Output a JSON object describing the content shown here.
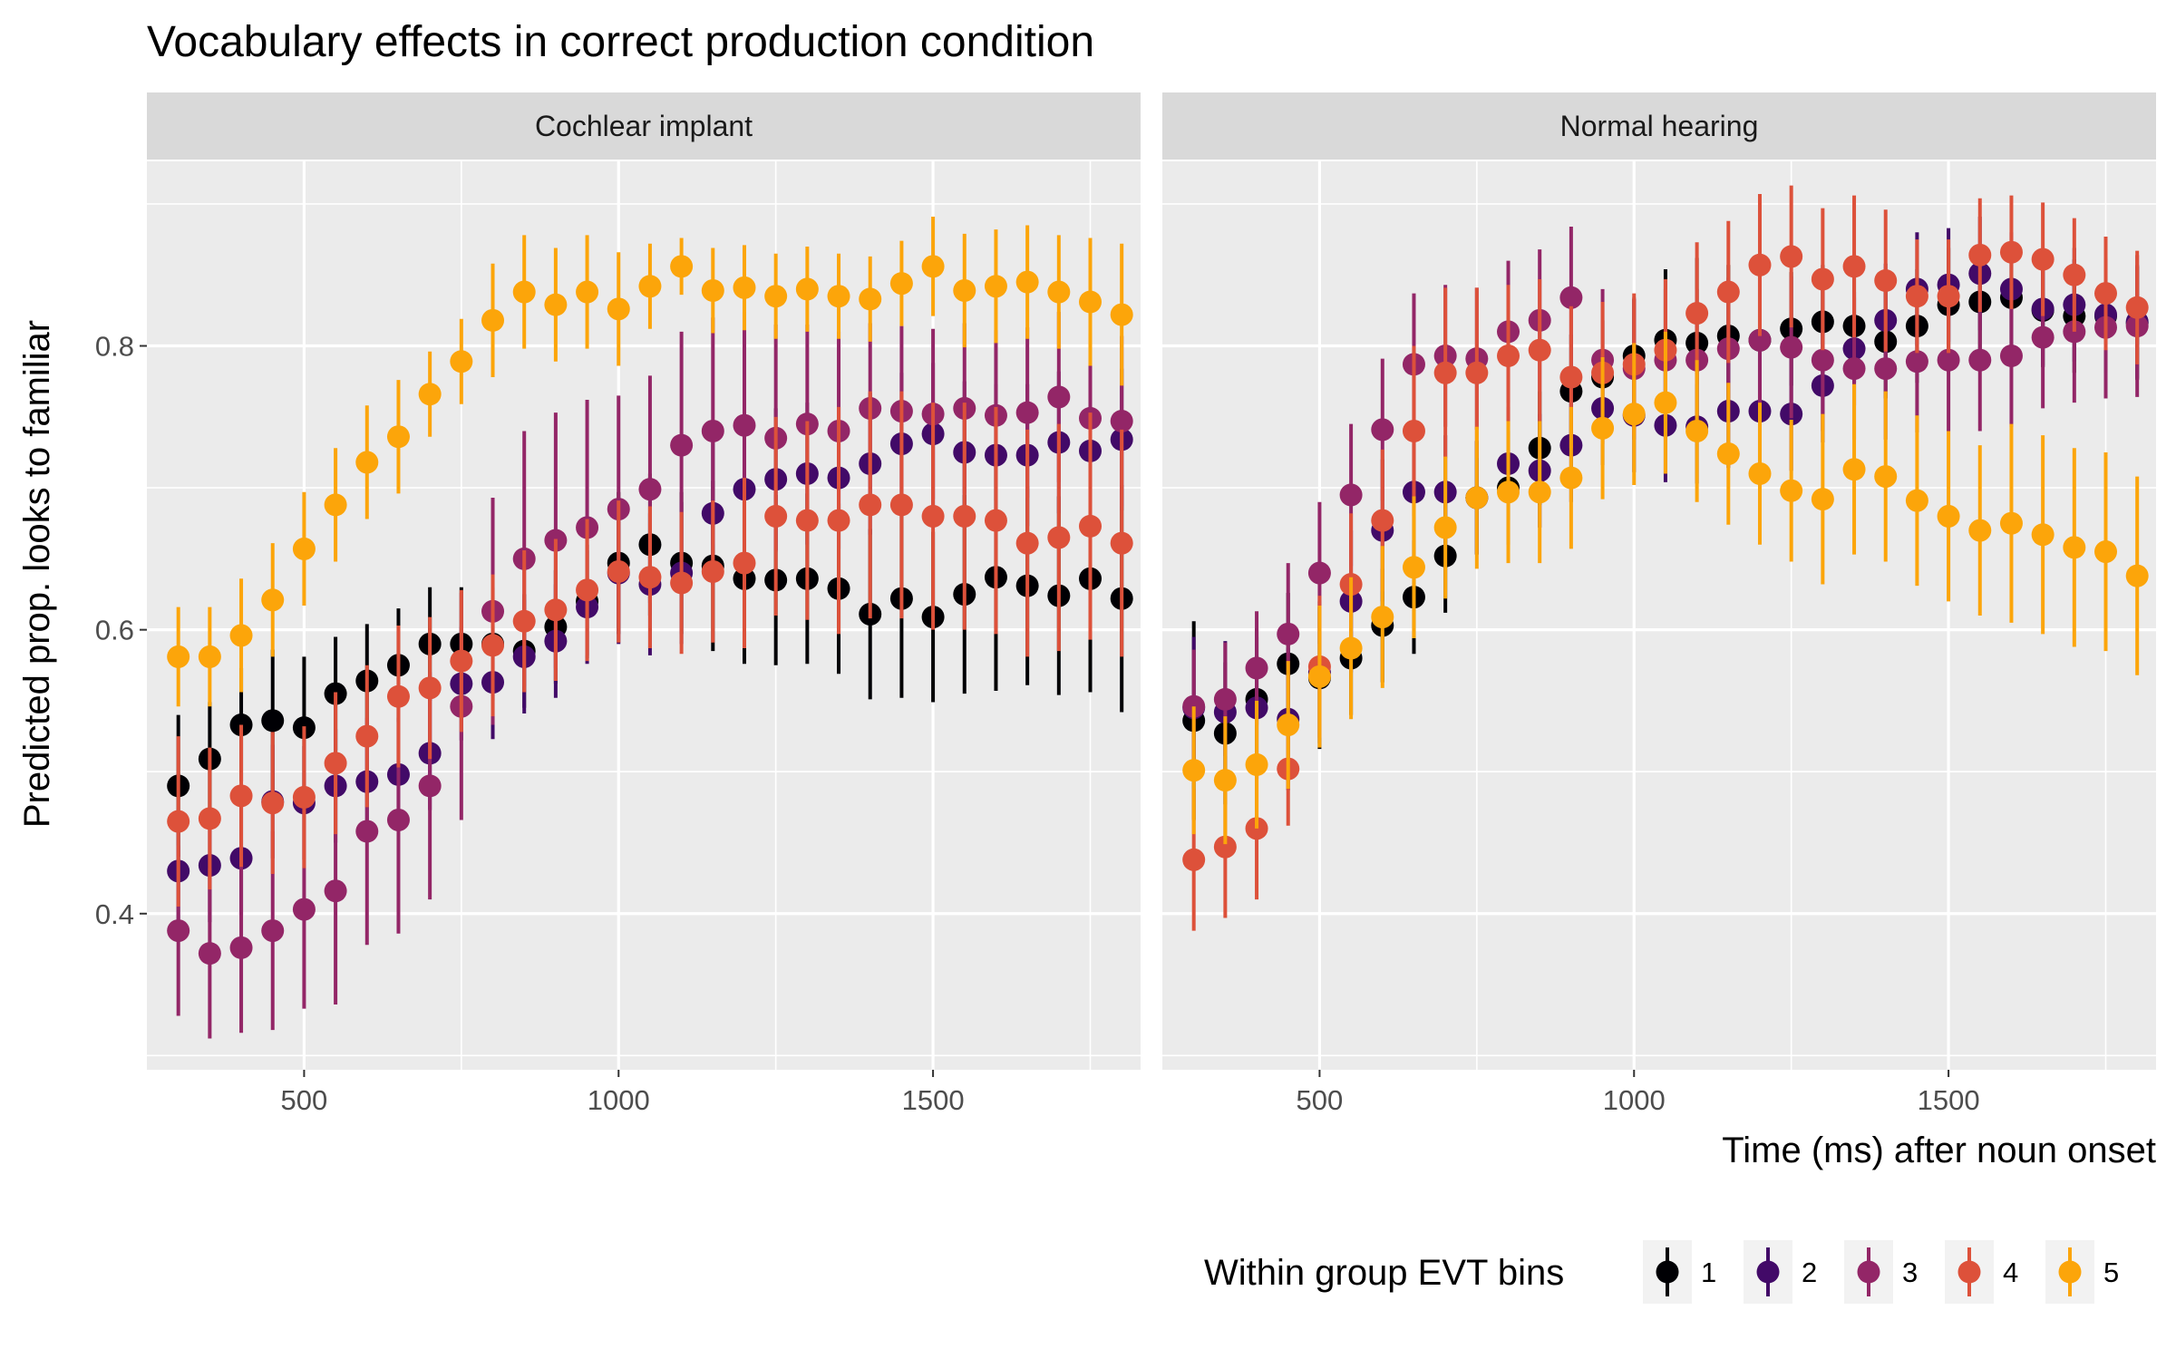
{
  "chart_data": {
    "type": "scatter",
    "subtype": "point-range (faceted)",
    "title": "Vocabulary effects in correct production condition",
    "xlabel": "Time (ms) after noun onset",
    "ylabel": "Predicted prop. looks to familiar",
    "xlim": [
      250,
      1830
    ],
    "ylim": [
      0.29,
      0.93
    ],
    "x_ticks": [
      500,
      1000,
      1500
    ],
    "y_ticks": [
      0.4,
      0.6,
      0.8
    ],
    "x_tick_labels": [
      "500",
      "1000",
      "1500"
    ],
    "y_tick_labels": [
      "0.4",
      "0.6",
      "0.8"
    ],
    "grid": true,
    "legend": {
      "title": "Within group EVT bins",
      "position": "bottom-right",
      "entries": [
        {
          "label": "1",
          "color": "#000004"
        },
        {
          "label": "2",
          "color": "#420A68"
        },
        {
          "label": "3",
          "color": "#932667"
        },
        {
          "label": "4",
          "color": "#DD513A"
        },
        {
          "label": "5",
          "color": "#FCA50A"
        }
      ]
    },
    "x": [
      300,
      350,
      400,
      450,
      500,
      550,
      600,
      650,
      700,
      750,
      800,
      850,
      900,
      950,
      1000,
      1050,
      1100,
      1150,
      1200,
      1250,
      1300,
      1350,
      1400,
      1450,
      1500,
      1550,
      1600,
      1650,
      1700,
      1750,
      1800
    ],
    "panels": [
      {
        "label": "Cochlear implant",
        "series": [
          {
            "name": "1",
            "color": "#000004",
            "y": [
              0.49,
              0.509,
              0.533,
              0.536,
              0.531,
              0.555,
              0.564,
              0.575,
              0.59,
              0.59,
              0.59,
              0.585,
              0.602,
              0.62,
              0.647,
              0.66,
              0.647,
              0.645,
              0.636,
              0.635,
              0.636,
              0.629,
              0.611,
              0.622,
              0.609,
              0.625,
              0.637,
              0.631,
              0.624,
              0.636,
              0.622
            ],
            "err": [
              0.05,
              0.04,
              0.04,
              0.05,
              0.05,
              0.04,
              0.04,
              0.04,
              0.04,
              0.04,
              0.04,
              0.04,
              0.04,
              0.04,
              0.05,
              0.05,
              0.05,
              0.06,
              0.06,
              0.06,
              0.06,
              0.06,
              0.06,
              0.07,
              0.06,
              0.07,
              0.08,
              0.07,
              0.07,
              0.08,
              0.08
            ]
          },
          {
            "name": "2",
            "color": "#420A68",
            "y": [
              0.43,
              0.434,
              0.439,
              0.479,
              0.478,
              0.49,
              0.493,
              0.498,
              0.513,
              0.562,
              0.563,
              0.581,
              0.592,
              0.616,
              0.64,
              0.632,
              0.64,
              0.682,
              0.699,
              0.706,
              0.71,
              0.707,
              0.717,
              0.731,
              0.738,
              0.725,
              0.723,
              0.723,
              0.732,
              0.726,
              0.734
            ],
            "err": [
              0.04,
              0.04,
              0.04,
              0.04,
              0.04,
              0.04,
              0.04,
              0.04,
              0.04,
              0.04,
              0.04,
              0.04,
              0.04,
              0.04,
              0.05,
              0.05,
              0.05,
              0.05,
              0.05,
              0.05,
              0.05,
              0.05,
              0.05,
              0.05,
              0.05,
              0.05,
              0.05,
              0.05,
              0.05,
              0.05,
              0.05
            ]
          },
          {
            "name": "3",
            "color": "#932667",
            "y": [
              0.388,
              0.372,
              0.376,
              0.388,
              0.403,
              0.416,
              0.458,
              0.466,
              0.49,
              0.546,
              0.613,
              0.65,
              0.663,
              0.672,
              0.685,
              0.699,
              0.73,
              0.74,
              0.744,
              0.735,
              0.745,
              0.74,
              0.756,
              0.754,
              0.752,
              0.756,
              0.751,
              0.753,
              0.764,
              0.749,
              0.747
            ],
            "err": [
              0.06,
              0.06,
              0.06,
              0.07,
              0.07,
              0.08,
              0.08,
              0.08,
              0.08,
              0.08,
              0.08,
              0.09,
              0.09,
              0.09,
              0.08,
              0.08,
              0.08,
              0.08,
              0.08,
              0.08,
              0.07,
              0.07,
              0.06,
              0.06,
              0.06,
              0.06,
              0.06,
              0.06,
              0.06,
              0.06,
              0.06
            ]
          },
          {
            "name": "4",
            "color": "#DD513A",
            "y": [
              0.465,
              0.467,
              0.483,
              0.478,
              0.482,
              0.506,
              0.525,
              0.553,
              0.559,
              0.578,
              0.589,
              0.606,
              0.614,
              0.628,
              0.641,
              0.637,
              0.633,
              0.641,
              0.647,
              0.68,
              0.677,
              0.677,
              0.688,
              0.688,
              0.68,
              0.68,
              0.677,
              0.661,
              0.665,
              0.673,
              0.661
            ],
            "err": [
              0.06,
              0.05,
              0.05,
              0.05,
              0.05,
              0.05,
              0.05,
              0.05,
              0.05,
              0.05,
              0.05,
              0.05,
              0.05,
              0.05,
              0.05,
              0.05,
              0.05,
              0.05,
              0.06,
              0.07,
              0.07,
              0.08,
              0.08,
              0.08,
              0.08,
              0.08,
              0.08,
              0.08,
              0.08,
              0.08,
              0.08
            ]
          },
          {
            "name": "5",
            "color": "#FCA50A",
            "y": [
              0.581,
              0.581,
              0.596,
              0.621,
              0.657,
              0.688,
              0.718,
              0.736,
              0.766,
              0.789,
              0.818,
              0.838,
              0.829,
              0.838,
              0.826,
              0.842,
              0.856,
              0.839,
              0.841,
              0.835,
              0.84,
              0.835,
              0.833,
              0.844,
              0.856,
              0.839,
              0.842,
              0.845,
              0.838,
              0.831,
              0.822
            ],
            "err": [
              0.035,
              0.035,
              0.04,
              0.04,
              0.04,
              0.04,
              0.04,
              0.04,
              0.03,
              0.03,
              0.04,
              0.04,
              0.04,
              0.04,
              0.04,
              0.03,
              0.02,
              0.03,
              0.03,
              0.03,
              0.03,
              0.03,
              0.03,
              0.03,
              0.035,
              0.04,
              0.04,
              0.04,
              0.04,
              0.045,
              0.05
            ]
          }
        ]
      },
      {
        "label": "Normal hearing",
        "series": [
          {
            "name": "1",
            "color": "#000004",
            "y": [
              0.536,
              0.527,
              0.551,
              0.576,
              0.566,
              0.58,
              0.603,
              0.623,
              0.652,
              0.693,
              0.7,
              0.728,
              0.768,
              0.778,
              0.793,
              0.804,
              0.802,
              0.807,
              0.804,
              0.812,
              0.817,
              0.814,
              0.803,
              0.814,
              0.829,
              0.831,
              0.834,
              0.825,
              0.821,
              0.821,
              0.816
            ],
            "err": [
              0.07,
              0.05,
              0.05,
              0.05,
              0.05,
              0.04,
              0.04,
              0.04,
              0.04,
              0.04,
              0.04,
              0.04,
              0.04,
              0.04,
              0.04,
              0.05,
              0.06,
              0.05,
              0.05,
              0.04,
              0.04,
              0.04,
              0.04,
              0.04,
              0.04,
              0.04,
              0.04,
              0.04,
              0.04,
              0.04,
              0.04
            ]
          },
          {
            "name": "2",
            "color": "#420A68",
            "y": [
              0.545,
              0.542,
              0.545,
              0.537,
              0.57,
              0.62,
              0.67,
              0.697,
              0.697,
              0.693,
              0.717,
              0.712,
              0.73,
              0.756,
              0.751,
              0.744,
              0.743,
              0.754,
              0.754,
              0.752,
              0.772,
              0.798,
              0.818,
              0.84,
              0.843,
              0.851,
              0.84,
              0.826,
              0.829,
              0.822,
              0.817
            ],
            "err": [
              0.05,
              0.05,
              0.05,
              0.05,
              0.05,
              0.05,
              0.05,
              0.05,
              0.04,
              0.04,
              0.04,
              0.04,
              0.04,
              0.04,
              0.04,
              0.04,
              0.04,
              0.04,
              0.04,
              0.04,
              0.04,
              0.04,
              0.04,
              0.04,
              0.04,
              0.04,
              0.04,
              0.04,
              0.04,
              0.04,
              0.04
            ]
          },
          {
            "name": "3",
            "color": "#932667",
            "y": [
              0.546,
              0.551,
              0.573,
              0.597,
              0.64,
              0.695,
              0.741,
              0.787,
              0.793,
              0.791,
              0.81,
              0.818,
              0.834,
              0.79,
              0.784,
              0.79,
              0.79,
              0.798,
              0.804,
              0.799,
              0.79,
              0.784,
              0.784,
              0.789,
              0.79,
              0.79,
              0.793,
              0.806,
              0.81,
              0.813,
              0.814
            ],
            "err": [
              0.04,
              0.04,
              0.04,
              0.05,
              0.05,
              0.05,
              0.05,
              0.05,
              0.05,
              0.05,
              0.05,
              0.05,
              0.05,
              0.05,
              0.05,
              0.05,
              0.05,
              0.05,
              0.05,
              0.05,
              0.05,
              0.05,
              0.05,
              0.05,
              0.05,
              0.05,
              0.05,
              0.05,
              0.05,
              0.05,
              0.05
            ]
          },
          {
            "name": "4",
            "color": "#DD513A",
            "y": [
              0.438,
              0.447,
              0.46,
              0.502,
              0.574,
              0.632,
              0.677,
              0.74,
              0.781,
              0.781,
              0.793,
              0.797,
              0.778,
              0.781,
              0.787,
              0.797,
              0.823,
              0.838,
              0.857,
              0.863,
              0.847,
              0.856,
              0.846,
              0.835,
              0.835,
              0.864,
              0.866,
              0.861,
              0.85,
              0.837,
              0.827
            ],
            "err": [
              0.05,
              0.05,
              0.05,
              0.04,
              0.05,
              0.05,
              0.05,
              0.06,
              0.06,
              0.06,
              0.05,
              0.05,
              0.05,
              0.05,
              0.05,
              0.05,
              0.05,
              0.05,
              0.05,
              0.05,
              0.05,
              0.05,
              0.05,
              0.04,
              0.04,
              0.04,
              0.04,
              0.04,
              0.04,
              0.04,
              0.04
            ]
          },
          {
            "name": "5",
            "color": "#FCA50A",
            "y": [
              0.501,
              0.494,
              0.505,
              0.533,
              0.567,
              0.587,
              0.609,
              0.644,
              0.672,
              0.693,
              0.697,
              0.697,
              0.707,
              0.742,
              0.752,
              0.76,
              0.74,
              0.724,
              0.71,
              0.698,
              0.692,
              0.713,
              0.708,
              0.691,
              0.68,
              0.67,
              0.675,
              0.667,
              0.658,
              0.655,
              0.638
            ],
            "err": [
              0.045,
              0.045,
              0.045,
              0.045,
              0.05,
              0.05,
              0.05,
              0.05,
              0.05,
              0.05,
              0.05,
              0.05,
              0.05,
              0.05,
              0.05,
              0.05,
              0.05,
              0.05,
              0.05,
              0.05,
              0.06,
              0.06,
              0.06,
              0.06,
              0.06,
              0.06,
              0.07,
              0.07,
              0.07,
              0.07,
              0.07
            ]
          }
        ]
      }
    ]
  }
}
